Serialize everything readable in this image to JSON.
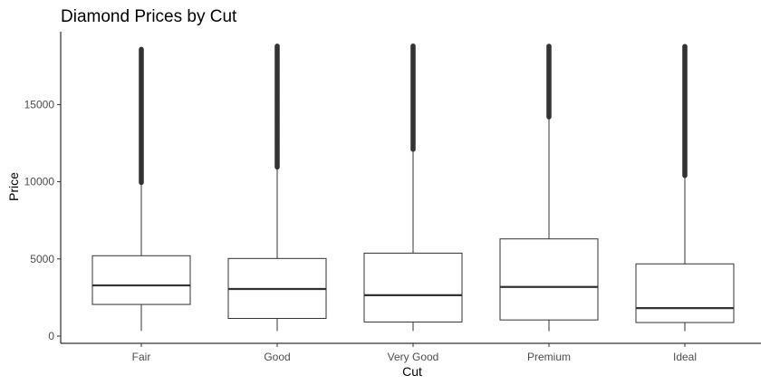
{
  "colors": {
    "background": "#ffffff",
    "box_fill": "#ffffff",
    "box_stroke": "#333333",
    "axis": "#000000",
    "tick_label": "#4d4d4d",
    "outlier": "#333333"
  },
  "chart_data": {
    "type": "boxplot",
    "title": "Diamond Prices by Cut",
    "xlabel": "Cut",
    "ylabel": "Price",
    "ylim": [
      0,
      19500
    ],
    "yticks": [
      0,
      5000,
      10000,
      15000
    ],
    "ytick_labels": [
      "0",
      "5000",
      "10000",
      "15000"
    ],
    "grid": false,
    "legend": "none",
    "categories": [
      "Fair",
      "Good",
      "Very Good",
      "Premium",
      "Ideal"
    ],
    "boxes": [
      {
        "category": "Fair",
        "whisker_low": 337,
        "q1": 2050,
        "median": 3282,
        "q3": 5206,
        "whisker_high": 9880
      },
      {
        "category": "Good",
        "whisker_low": 327,
        "q1": 1145,
        "median": 3050,
        "q3": 5028,
        "whisker_high": 10850
      },
      {
        "category": "Very Good",
        "whisker_low": 336,
        "q1": 912,
        "median": 2648,
        "q3": 5373,
        "whisker_high": 12050
      },
      {
        "category": "Premium",
        "whisker_low": 326,
        "q1": 1046,
        "median": 3185,
        "q3": 6296,
        "whisker_high": 14100
      },
      {
        "category": "Ideal",
        "whisker_low": 326,
        "q1": 878,
        "median": 1810,
        "q3": 4678,
        "whisker_high": 10300
      }
    ],
    "outlier_ranges": [
      {
        "category": "Fair",
        "from": 9950,
        "to": 18600
      },
      {
        "category": "Good",
        "from": 10950,
        "to": 18800
      },
      {
        "category": "Very Good",
        "from": 12100,
        "to": 18800
      },
      {
        "category": "Premium",
        "from": 14200,
        "to": 18800
      },
      {
        "category": "Ideal",
        "from": 10400,
        "to": 18800
      }
    ]
  }
}
